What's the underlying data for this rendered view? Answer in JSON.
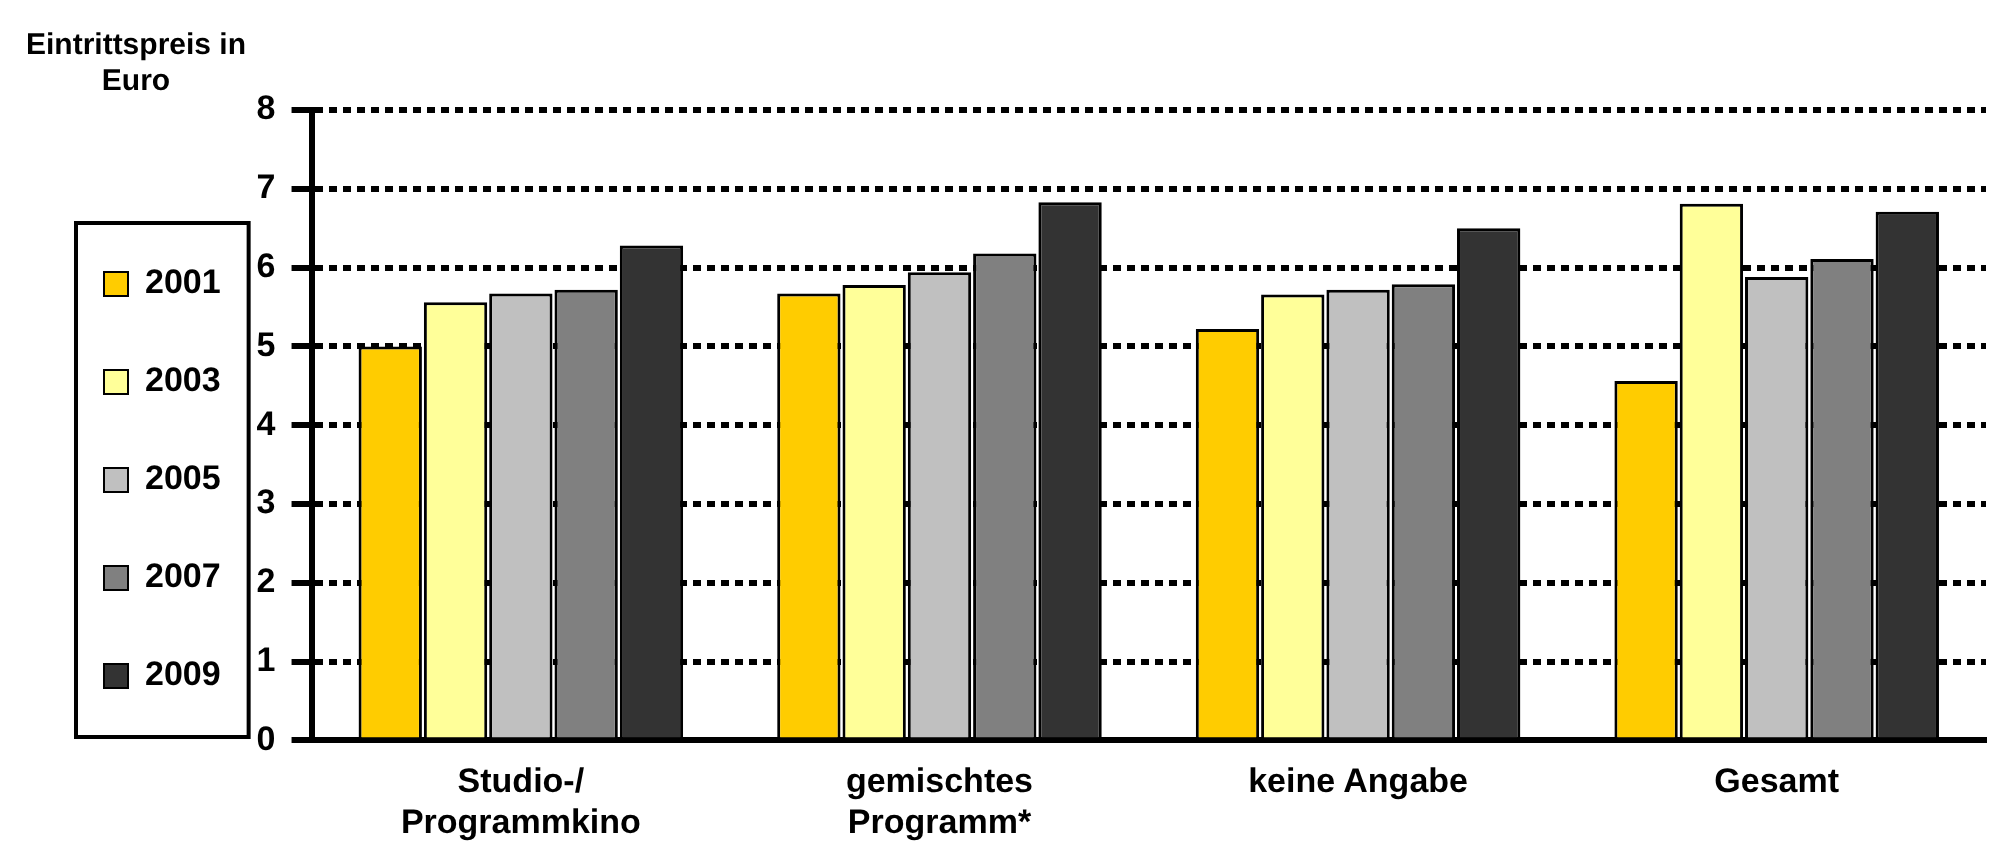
{
  "chart_data": {
    "type": "bar",
    "ylabel": "Eintrittspreis in Euro",
    "categories": [
      "Studio-/ Programmkino",
      "gemischtes Programm*",
      "keine Angabe",
      "Gesamt"
    ],
    "series": [
      {
        "name": "2001",
        "color": "#ffcc00",
        "values": [
          5.0,
          5.67,
          5.22,
          4.56
        ]
      },
      {
        "name": "2003",
        "color": "#ffff99",
        "values": [
          5.56,
          5.78,
          5.66,
          6.81
        ]
      },
      {
        "name": "2005",
        "color": "#c0c0c0",
        "values": [
          5.67,
          5.94,
          5.72,
          5.88
        ]
      },
      {
        "name": "2007",
        "color": "#808080",
        "values": [
          5.72,
          6.18,
          5.79,
          6.11
        ]
      },
      {
        "name": "2009",
        "color": "#333333",
        "values": [
          6.28,
          6.83,
          6.5,
          6.71
        ]
      }
    ],
    "ylim": [
      0,
      8
    ],
    "yticks": [
      0,
      1,
      2,
      3,
      4,
      5,
      6,
      7,
      8
    ],
    "grid": "y",
    "line_style": "dashed",
    "legend": "left"
  }
}
